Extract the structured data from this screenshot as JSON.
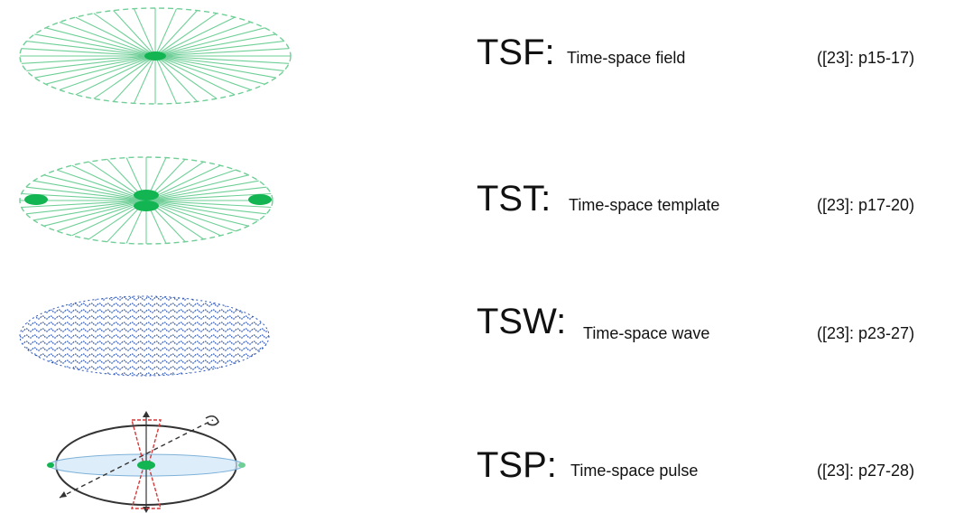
{
  "rows": [
    {
      "id": "tsf",
      "acronym": "TSF:",
      "description": "Time-space field",
      "reference": "([23]: p15-17)",
      "icon": "radial-spoke-field-icon"
    },
    {
      "id": "tst",
      "acronym": "TST:",
      "description": "Time-space template",
      "reference": "([23]: p17-20)",
      "icon": "radial-template-with-nodes-icon"
    },
    {
      "id": "tsw",
      "acronym": "TSW:",
      "description": "Time-space wave",
      "reference": "([23]: p23-27)",
      "icon": "wave-pattern-ellipse-icon"
    },
    {
      "id": "tsp",
      "acronym": "TSP:",
      "description": "Time-space pulse",
      "reference": "([23]: p27-28)",
      "icon": "pulse-ellipse-with-axes-icon"
    }
  ],
  "colors": {
    "field_green": "#6fcf97",
    "node_green": "#12b552",
    "wave_blue": "#2c56b8",
    "pulse_red": "#d43a3a",
    "outline_dark": "#333333"
  }
}
